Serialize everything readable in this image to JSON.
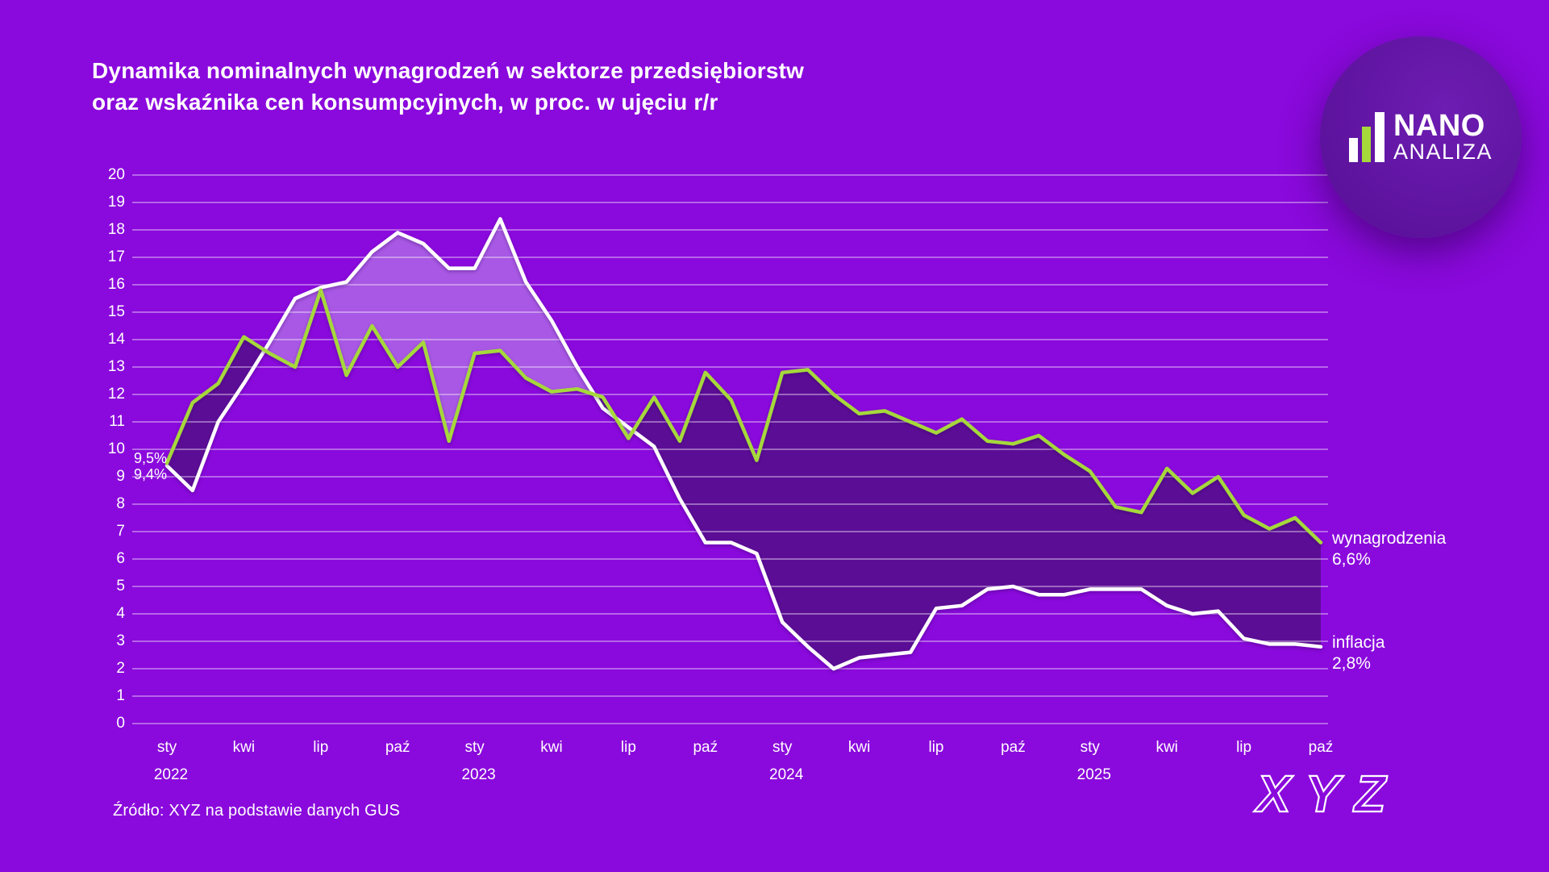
{
  "title": {
    "line1": "Dynamika nominalnych wynagrodzeń w sektorze przedsiębiorstw",
    "line2": "oraz wskaźnika cen konsumpcyjnych, w proc. w ujęciu r/r"
  },
  "brand_logo": {
    "primary": "NANO",
    "secondary": "ANALIZA"
  },
  "source_note": "Źródło: XYZ na podstawie danych GUS",
  "footer_logo": {
    "text": "XYZ"
  },
  "start_annotations": {
    "wages": "9,5%",
    "inflation": "9,4%"
  },
  "end_labels": {
    "wages_name": "wynagrodzenia",
    "wages_value": "6,6%",
    "inflation_name": "inflacja",
    "inflation_value": "2,8%"
  },
  "colors": {
    "background": "#8A09DC",
    "fill_dark": "#5C0D96",
    "fill_light": "#A958E5",
    "line_wages": "#A6D83B",
    "line_inflation": "#FFFFFF",
    "gridline": "rgba(255,255,255,0.5)",
    "logo_circle": "#6018A5",
    "text": "#FFFFFF"
  },
  "chart_data": {
    "type": "line",
    "title": "Dynamika nominalnych wynagrodzeń w sektorze przedsiębiorstw oraz wskaźnika cen konsumpcyjnych, w proc. w ujęciu r/r",
    "x_frequency": "monthly",
    "x_range": [
      "sty 2022",
      "paź 2025"
    ],
    "ylim": [
      0,
      20
    ],
    "grid": true,
    "legend_position": "right-end-labels",
    "y_ticks": [
      0,
      1,
      2,
      3,
      4,
      5,
      6,
      7,
      8,
      9,
      10,
      11,
      12,
      13,
      14,
      15,
      16,
      17,
      18,
      19,
      20
    ],
    "x_ticks": [
      {
        "i": 0,
        "label": "sty",
        "year": "2022"
      },
      {
        "i": 3,
        "label": "kwi"
      },
      {
        "i": 6,
        "label": "lip"
      },
      {
        "i": 9,
        "label": "paź"
      },
      {
        "i": 12,
        "label": "sty",
        "year": "2023"
      },
      {
        "i": 15,
        "label": "kwi"
      },
      {
        "i": 18,
        "label": "lip"
      },
      {
        "i": 21,
        "label": "paź"
      },
      {
        "i": 24,
        "label": "sty",
        "year": "2024"
      },
      {
        "i": 27,
        "label": "kwi"
      },
      {
        "i": 30,
        "label": "lip"
      },
      {
        "i": 33,
        "label": "paź"
      },
      {
        "i": 36,
        "label": "sty",
        "year": "2025"
      },
      {
        "i": 39,
        "label": "kwi"
      },
      {
        "i": 42,
        "label": "lip"
      },
      {
        "i": 45,
        "label": "paź"
      }
    ],
    "series": [
      {
        "name": "wynagrodzenia",
        "color": "#A6D83B",
        "values": [
          9.5,
          11.7,
          12.4,
          14.1,
          13.5,
          13.0,
          15.8,
          12.7,
          14.5,
          13.0,
          13.9,
          10.3,
          13.5,
          13.6,
          12.6,
          12.1,
          12.2,
          11.9,
          10.4,
          11.9,
          10.3,
          12.8,
          11.8,
          9.6,
          12.8,
          12.9,
          12.0,
          11.3,
          11.4,
          11.0,
          10.6,
          11.1,
          10.3,
          10.2,
          10.5,
          9.8,
          9.2,
          7.9,
          7.7,
          9.3,
          8.4,
          9.0,
          7.6,
          7.1,
          7.5,
          6.6
        ]
      },
      {
        "name": "inflacja",
        "color": "#FFFFFF",
        "values": [
          9.4,
          8.5,
          11.0,
          12.4,
          13.9,
          15.5,
          15.9,
          16.1,
          17.2,
          17.9,
          17.5,
          16.6,
          16.6,
          18.4,
          16.1,
          14.7,
          13.0,
          11.5,
          10.8,
          10.1,
          8.2,
          6.6,
          6.6,
          6.2,
          3.7,
          2.8,
          2.0,
          2.4,
          2.5,
          2.6,
          4.2,
          4.3,
          4.9,
          5.0,
          4.7,
          4.7,
          4.9,
          4.9,
          4.9,
          4.3,
          4.0,
          4.1,
          3.1,
          2.9,
          2.9,
          2.8
        ]
      }
    ]
  }
}
